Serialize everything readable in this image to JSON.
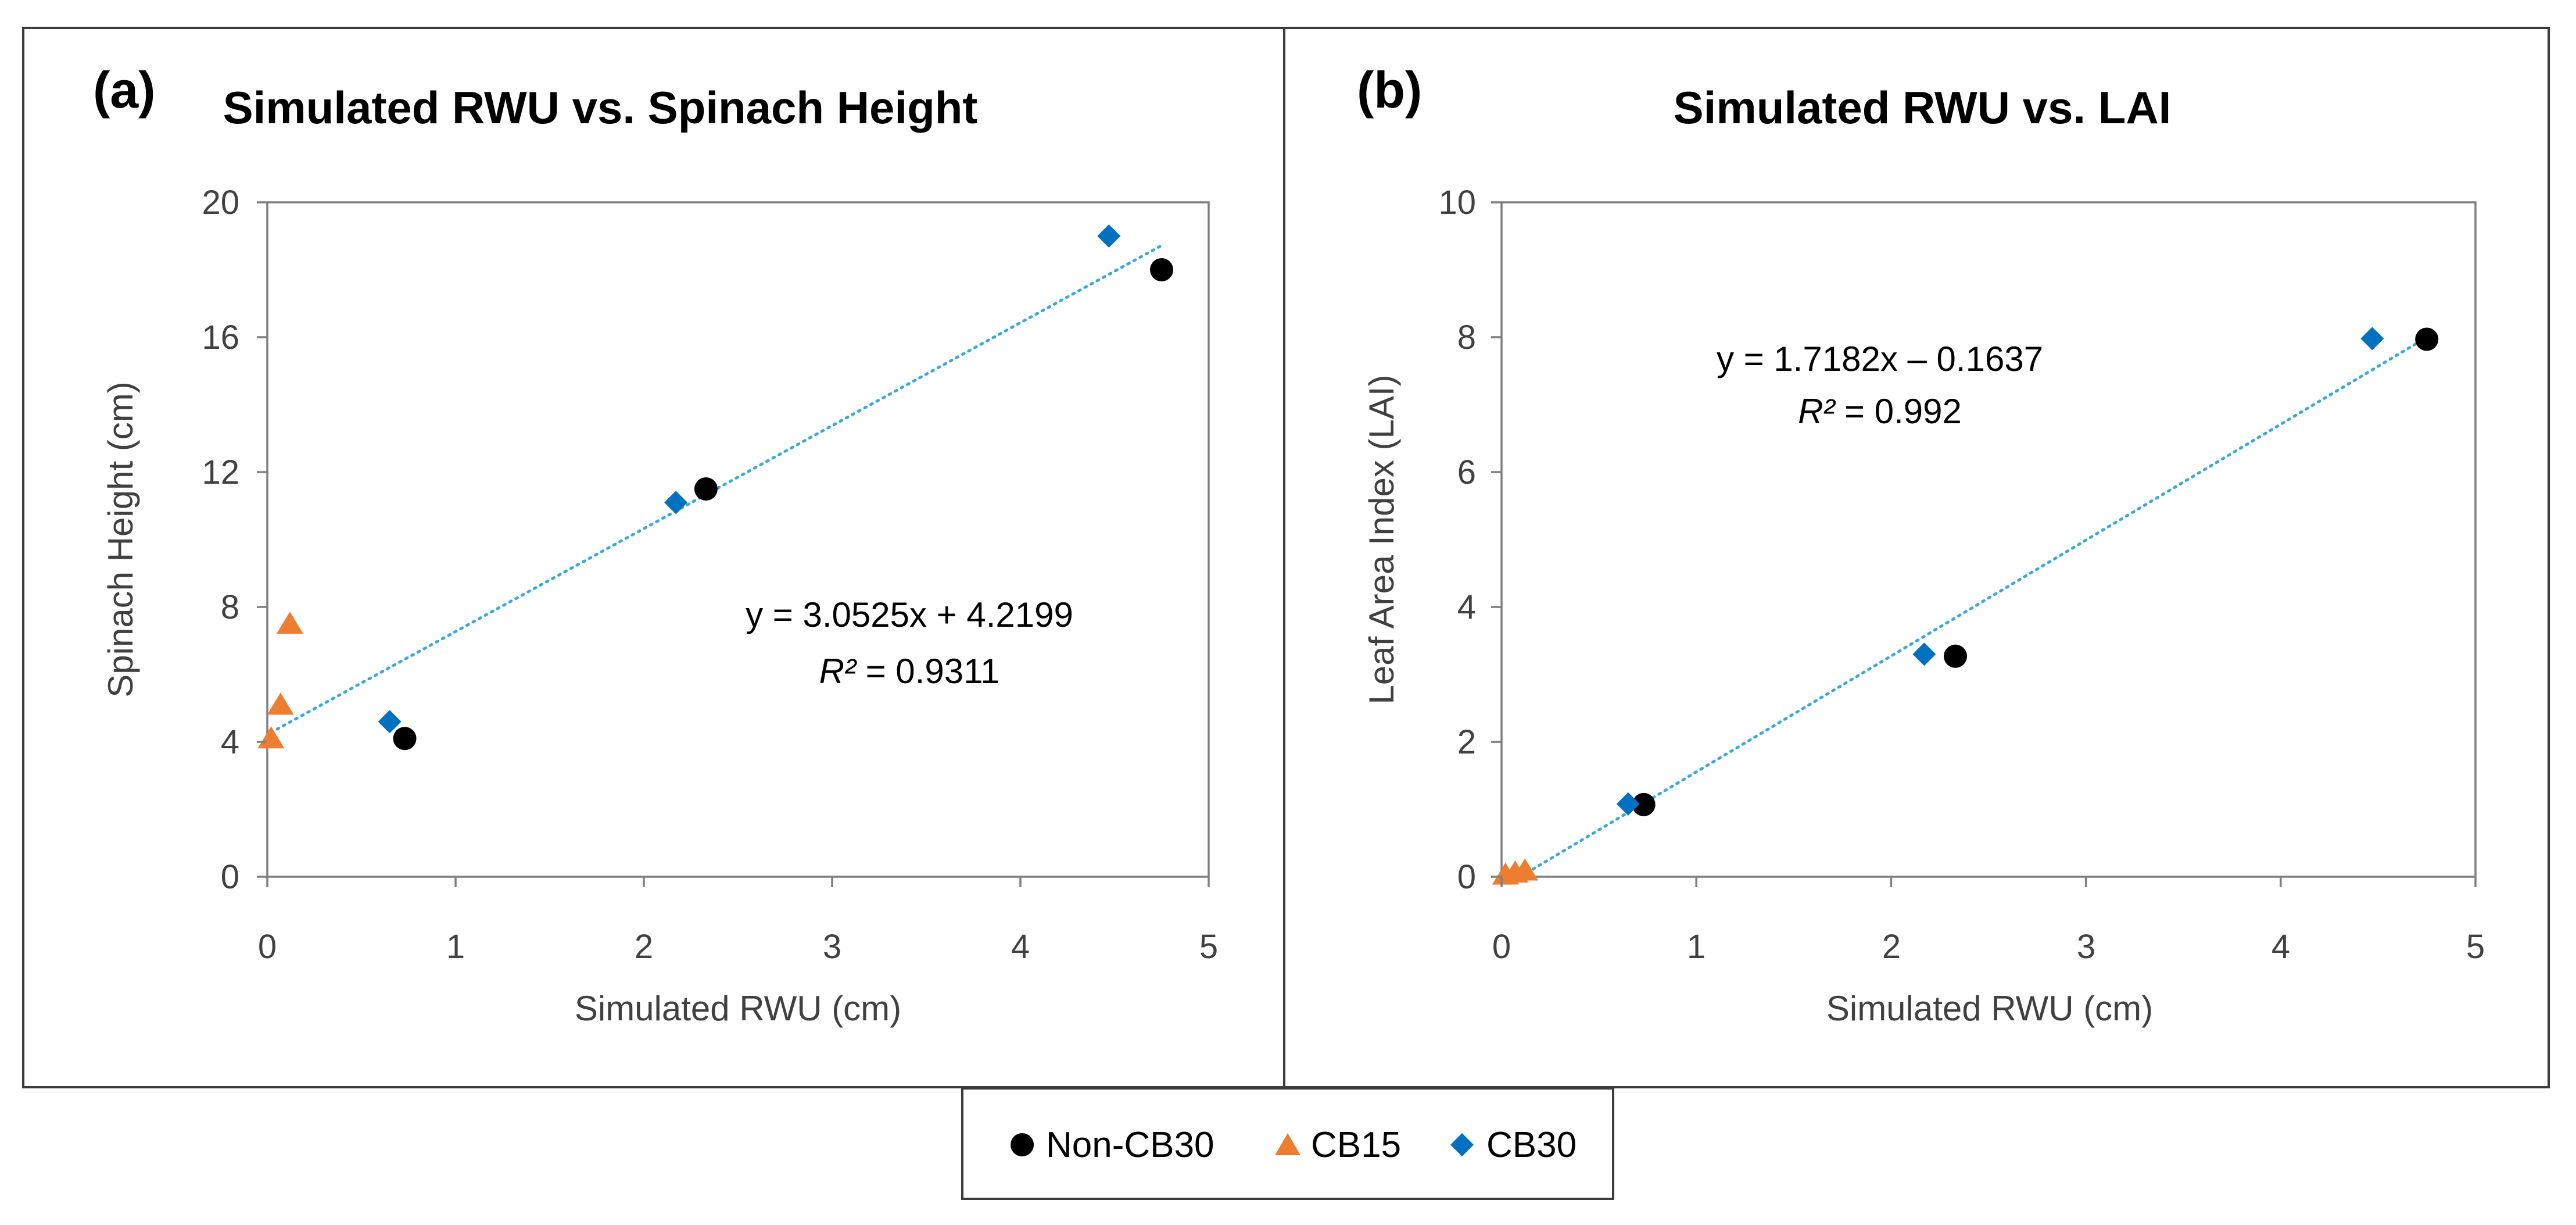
{
  "figure": {
    "colors": {
      "non_cb30": "#000000",
      "cb15": "#ed7d31",
      "cb30": "#0070c0",
      "trendline": "#3aa8d8"
    }
  },
  "legend": {
    "items": [
      {
        "key": "non_cb30",
        "label": "Non-CB30",
        "marker": "circle"
      },
      {
        "key": "cb15",
        "label": "CB15",
        "marker": "triangle"
      },
      {
        "key": "cb30",
        "label": "CB30",
        "marker": "diamond"
      }
    ]
  },
  "chart_data": [
    {
      "id": "a",
      "type": "scatter",
      "panel_label": "(a)",
      "title": "Simulated RWU vs. Spinach Height",
      "xlabel": "Simulated RWU (cm)",
      "ylabel": "Spinach Height (cm)",
      "xlim": [
        0,
        5
      ],
      "ylim": [
        0,
        20
      ],
      "xticks": [
        0,
        1,
        2,
        3,
        4,
        5
      ],
      "yticks": [
        0,
        4,
        8,
        12,
        16,
        20
      ],
      "grid": false,
      "series": [
        {
          "name": "Non-CB30",
          "key": "non_cb30",
          "marker": "circle",
          "x": [
            0.73,
            2.33,
            4.75
          ],
          "y": [
            4.1,
            11.5,
            18.0
          ]
        },
        {
          "name": "CB15",
          "key": "cb15",
          "marker": "triangle",
          "x": [
            0.02,
            0.07,
            0.12
          ],
          "y": [
            4.1,
            5.1,
            7.5
          ]
        },
        {
          "name": "CB30",
          "key": "cb30",
          "marker": "diamond",
          "x": [
            0.65,
            2.17,
            4.47
          ],
          "y": [
            4.6,
            11.1,
            19.0
          ]
        }
      ],
      "trendline": {
        "slope": 3.0525,
        "intercept": 4.2199,
        "x_range": [
          0.02,
          4.75
        ]
      },
      "equation": {
        "line1": "y = 3.0525x + 4.2199",
        "r2_label": "R²",
        "r2_value": " = 0.9311"
      }
    },
    {
      "id": "b",
      "type": "scatter",
      "panel_label": "(b)",
      "title": "Simulated RWU vs. LAI",
      "xlabel": "Simulated RWU (cm)",
      "ylabel": "Leaf Area Index (LAI)",
      "xlim": [
        0,
        5
      ],
      "ylim": [
        0,
        10
      ],
      "xticks": [
        0,
        1,
        2,
        3,
        4,
        5
      ],
      "yticks": [
        0,
        2,
        4,
        6,
        8,
        10
      ],
      "grid": false,
      "series": [
        {
          "name": "Non-CB30",
          "key": "non_cb30",
          "marker": "circle",
          "x": [
            0.73,
            2.33,
            4.75
          ],
          "y": [
            1.07,
            3.27,
            7.97
          ]
        },
        {
          "name": "CB15",
          "key": "cb15",
          "marker": "triangle",
          "x": [
            0.02,
            0.07,
            0.12
          ],
          "y": [
            0.03,
            0.06,
            0.09
          ]
        },
        {
          "name": "CB30",
          "key": "cb30",
          "marker": "diamond",
          "x": [
            0.65,
            2.17,
            4.47
          ],
          "y": [
            1.08,
            3.3,
            7.98
          ]
        }
      ],
      "trendline": {
        "slope": 1.7182,
        "intercept": -0.1637,
        "x_range": [
          0.1,
          4.75
        ]
      },
      "equation": {
        "line1": "y = 1.7182x – 0.1637",
        "r2_label": "R²",
        "r2_value": " = 0.992"
      }
    }
  ]
}
